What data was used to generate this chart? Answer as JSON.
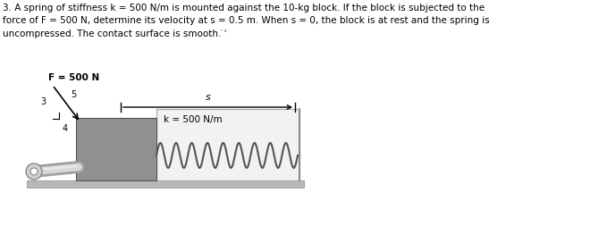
{
  "title_text": "3. A spring of stiffness k = 500 N/m is mounted against the 10-kg block. If the block is subjected to the\nforce of F = 500 N, determine its velocity at s = 0.5 m. When s = 0, the block is at rest and the spring is\nuncompressed. The contact surface is smooth. ̇ˈ",
  "F_label": "F = 500 N",
  "k_label": "k = 500 N/m",
  "s_label": "s",
  "ratio_3": "3",
  "ratio_4": "4",
  "ratio_5": "5",
  "block_color": "#909090",
  "floor_color": "#b8b8b8",
  "wall_color": "#e8e8e8",
  "rod_color_outer": "#a8a8a8",
  "rod_color_inner": "#d8d8d8",
  "spring_color": "#555555",
  "text_color": "#000000",
  "bg_color": "#ffffff",
  "fig_width": 6.79,
  "fig_height": 2.62,
  "dpi": 100
}
